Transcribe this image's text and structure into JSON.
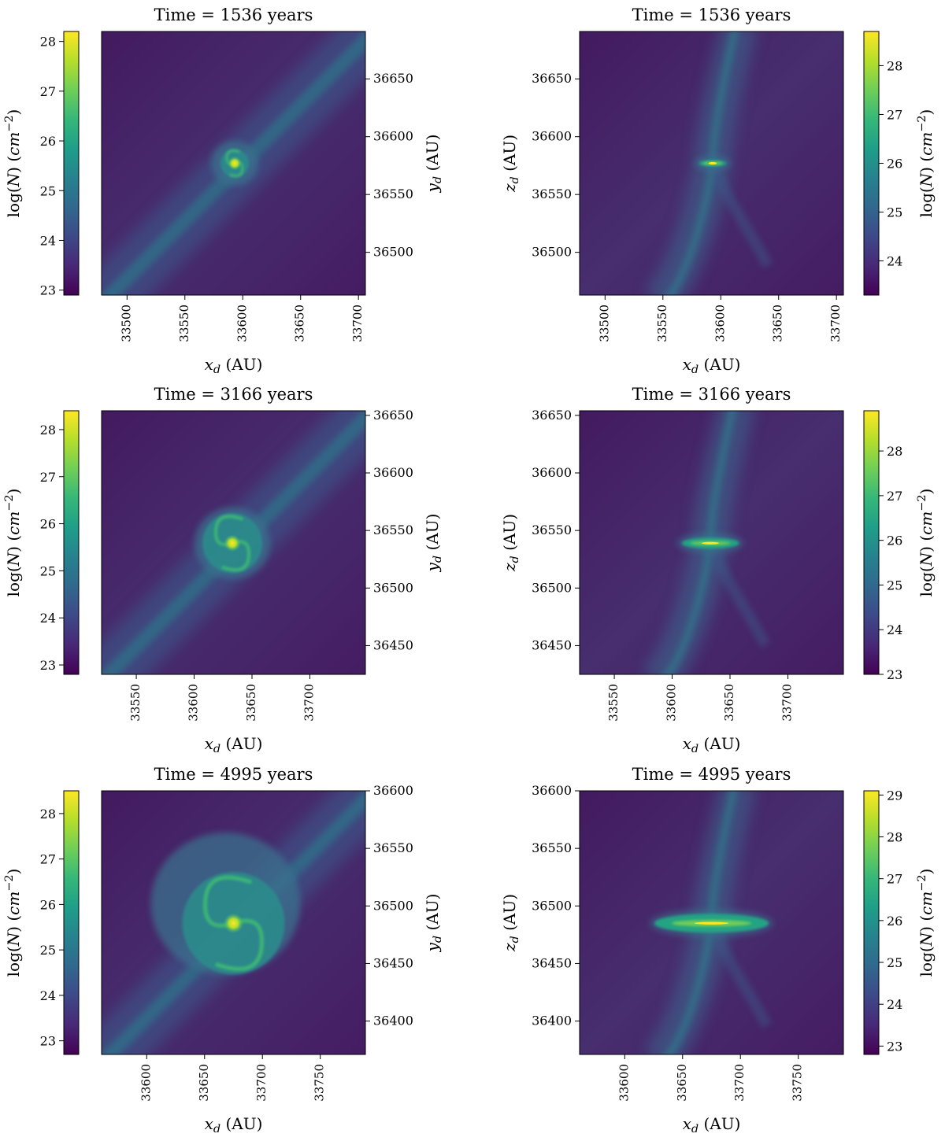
{
  "figure": {
    "colormap": "viridis",
    "colormap_stops": [
      "#440154",
      "#482878",
      "#3e4989",
      "#31688e",
      "#26828e",
      "#1f9e89",
      "#35b779",
      "#6ece58",
      "#b5de2b",
      "#fde725"
    ],
    "background_color": "#ffffff"
  },
  "chart_data": [
    {
      "type": "heatmap",
      "row": 1,
      "view": "face-on",
      "title": "Time = 1536 years",
      "xlabel": "x_d (AU)",
      "ylabel": "y_d (AU)",
      "xticks": [
        33500,
        33550,
        33600,
        33650,
        33700
      ],
      "yticks": [
        36500,
        36550,
        36600,
        36650
      ],
      "xlim": [
        33478,
        33706
      ],
      "ylim": [
        36463,
        36691
      ],
      "colorbar": {
        "label": "log(N) (cm^-2)",
        "ticks": [
          23,
          24,
          25,
          26,
          27,
          28
        ],
        "range": [
          22.9,
          28.2
        ],
        "side": "left"
      },
      "disk_center": [
        33593,
        36577
      ]
    },
    {
      "type": "heatmap",
      "row": 1,
      "view": "edge-on",
      "title": "Time = 1536 years",
      "xlabel": "x_d (AU)",
      "ylabel": "z_d (AU)",
      "xticks": [
        33500,
        33550,
        33600,
        33650,
        33700
      ],
      "yticks": [
        36500,
        36550,
        36600,
        36650
      ],
      "xlim": [
        33478,
        33706
      ],
      "ylim": [
        36463,
        36691
      ],
      "colorbar": {
        "label": "log(N) (cm^-2)",
        "ticks": [
          24,
          25,
          26,
          27,
          28
        ],
        "range": [
          23.3,
          28.7
        ],
        "side": "right"
      },
      "disk_center": [
        33593,
        36577
      ]
    },
    {
      "type": "heatmap",
      "row": 2,
      "view": "face-on",
      "title": "Time = 3166 years",
      "xlabel": "x_d (AU)",
      "ylabel": "y_d (AU)",
      "xticks": [
        33550,
        33600,
        33650,
        33700
      ],
      "yticks": [
        36450,
        36500,
        36550,
        36600,
        36650
      ],
      "xlim": [
        33520,
        33748
      ],
      "ylim": [
        36425,
        36654
      ],
      "colorbar": {
        "label": "log(N) (cm^-2)",
        "ticks": [
          23,
          24,
          25,
          26,
          27,
          28
        ],
        "range": [
          22.8,
          28.4
        ],
        "side": "left"
      },
      "disk_center": [
        33633,
        36539
      ]
    },
    {
      "type": "heatmap",
      "row": 2,
      "view": "edge-on",
      "title": "Time = 3166 years",
      "xlabel": "x_d (AU)",
      "ylabel": "z_d (AU)",
      "xticks": [
        33550,
        33600,
        33650,
        33700
      ],
      "yticks": [
        36450,
        36500,
        36550,
        36600,
        36650
      ],
      "xlim": [
        33520,
        33748
      ],
      "ylim": [
        36425,
        36654
      ],
      "colorbar": {
        "label": "log(N) (cm^-2)",
        "ticks": [
          23,
          24,
          25,
          26,
          27,
          28
        ],
        "range": [
          23.0,
          28.9
        ],
        "side": "right"
      },
      "disk_center": [
        33633,
        36539
      ]
    },
    {
      "type": "heatmap",
      "row": 3,
      "view": "face-on",
      "title": "Time = 4995 years",
      "xlabel": "x_d (AU)",
      "ylabel": "y_d (AU)",
      "xticks": [
        33600,
        33650,
        33700,
        33750
      ],
      "yticks": [
        36400,
        36450,
        36500,
        36550,
        36600
      ],
      "xlim": [
        33561,
        33789
      ],
      "ylim": [
        36371,
        36600
      ],
      "colorbar": {
        "label": "log(N) (cm^-2)",
        "ticks": [
          23,
          24,
          25,
          26,
          27,
          28
        ],
        "range": [
          22.7,
          28.5
        ],
        "side": "left"
      },
      "disk_center": [
        33675,
        36485
      ]
    },
    {
      "type": "heatmap",
      "row": 3,
      "view": "edge-on",
      "title": "Time = 4995 years",
      "xlabel": "x_d (AU)",
      "ylabel": "z_d (AU)",
      "xticks": [
        33600,
        33650,
        33700,
        33750
      ],
      "yticks": [
        36400,
        36450,
        36500,
        36550,
        36600
      ],
      "xlim": [
        33561,
        33789
      ],
      "ylim": [
        36371,
        36600
      ],
      "colorbar": {
        "label": "log(N) (cm^-2)",
        "ticks": [
          23,
          24,
          25,
          26,
          27,
          28,
          29
        ],
        "range": [
          22.8,
          29.1
        ],
        "side": "right"
      },
      "disk_center": [
        33675,
        36485
      ]
    }
  ]
}
